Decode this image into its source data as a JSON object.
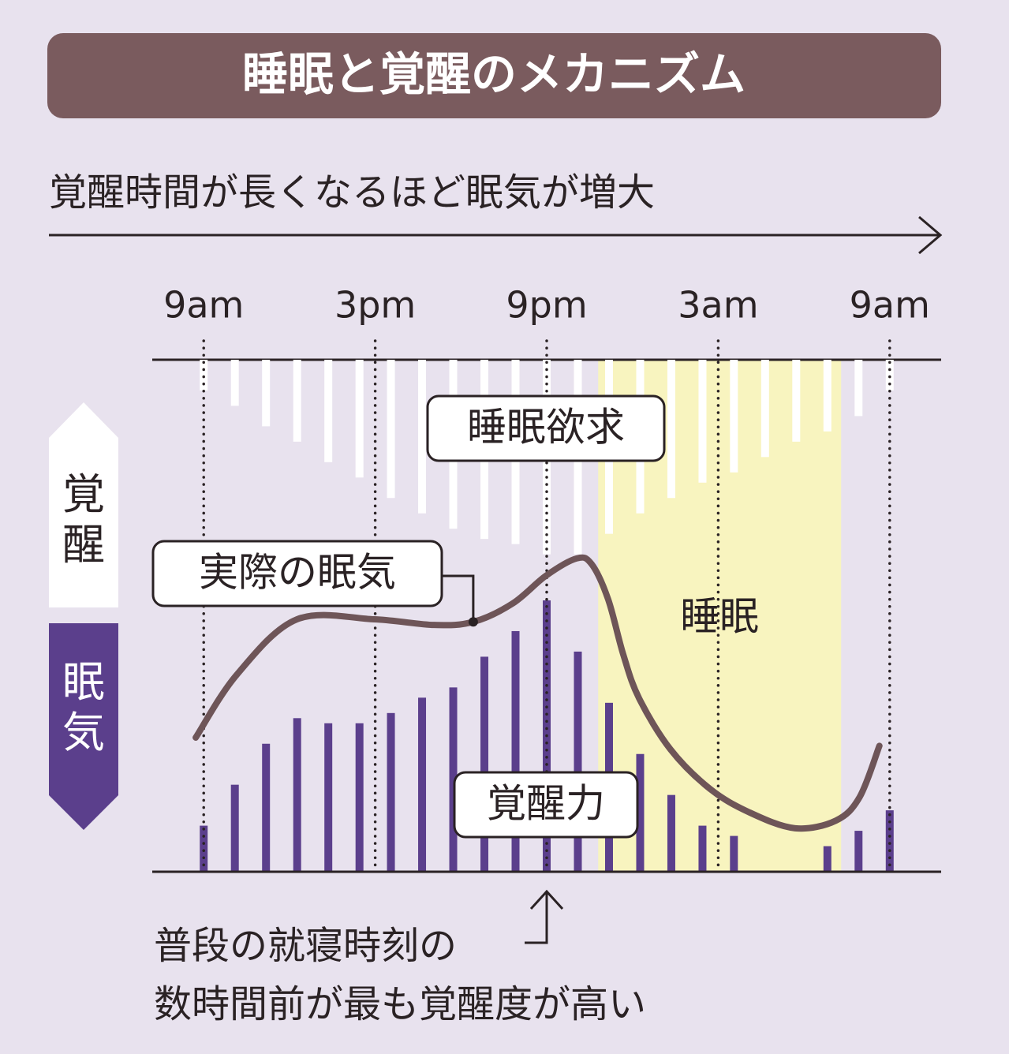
{
  "chart_data": {
    "type": "bar",
    "title": "睡眠と覚醒のメカニズム",
    "subtitle": "覚醒時間が長くなるほど眠気が増大",
    "xlim": [
      -1.8,
      25.8
    ],
    "xticks": [
      {
        "value": 0,
        "label": "9am"
      },
      {
        "value": 6,
        "label": "3pm"
      },
      {
        "value": 12,
        "label": "9pm"
      },
      {
        "value": 18,
        "label": "3am"
      },
      {
        "value": 24,
        "label": "9am"
      }
    ],
    "ylim": [
      0,
      100
    ],
    "x": [
      0,
      1.09,
      2.18,
      3.27,
      4.36,
      5.45,
      6.55,
      7.64,
      8.73,
      9.82,
      10.91,
      12,
      13.09,
      14.18,
      15.27,
      16.36,
      17.45,
      18.55,
      19.64,
      20.73,
      21.82,
      22.91,
      24
    ],
    "series": [
      {
        "name": "睡眠欲求",
        "color": "#ffffff",
        "from": "top",
        "values": [
          6,
          9,
          13,
          16,
          20,
          23,
          27,
          30,
          33,
          35,
          36,
          38,
          38,
          34,
          30,
          27,
          24,
          22,
          19,
          16,
          14,
          11,
          6
        ]
      },
      {
        "name": "覚醒力",
        "color": "#5b3f8c",
        "from": "bottom",
        "values": [
          9,
          17,
          25,
          30,
          29,
          29,
          31,
          34,
          36,
          42,
          47,
          53,
          43,
          33,
          23,
          15,
          9,
          7,
          0,
          0,
          5,
          8,
          12
        ]
      }
    ],
    "line": {
      "name": "実際の眠気",
      "color": "#6e5558",
      "x": [
        -0.28,
        1.16,
        3.26,
        5.96,
        8.06,
        9.43,
        10.81,
        11.97,
        13.05,
        13.57,
        14.15,
        14.68,
        15.23,
        16.33,
        17.71,
        19.09,
        20.69,
        22.12,
        22.95,
        23.64
      ],
      "values": [
        26.2,
        38.5,
        49.3,
        49.3,
        48.2,
        48.8,
        52.4,
        57.8,
        61.2,
        60.1,
        53.2,
        42.4,
        33.9,
        23.9,
        16.2,
        11.6,
        8.5,
        10.0,
        14.6,
        24.6
      ]
    },
    "sleep_band": {
      "label": "睡眠",
      "color": "#f8f4bf",
      "x": [
        13.8,
        22.3
      ]
    },
    "side_labels": {
      "up": "覚醒",
      "down": "眠気"
    },
    "annotation": {
      "x": 12,
      "lines": [
        "普段の就寝時刻の",
        "数時間前が最も覚醒度が高い"
      ]
    }
  }
}
